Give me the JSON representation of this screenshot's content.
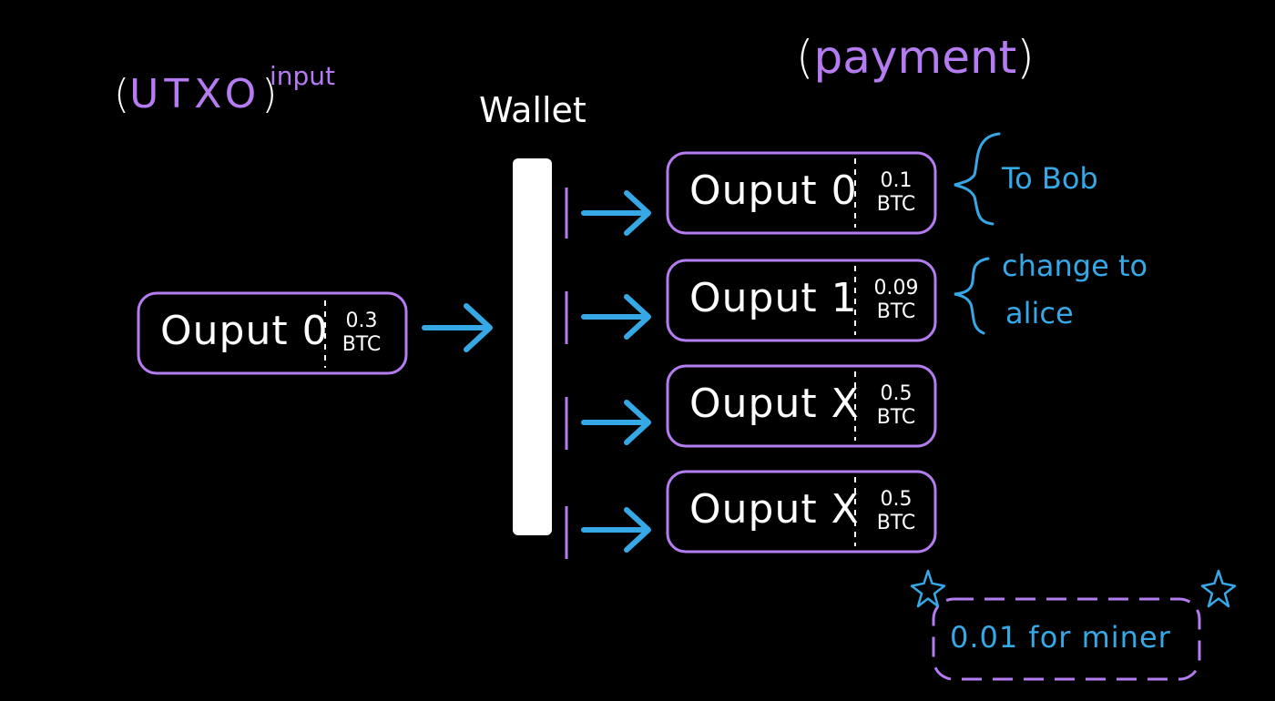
{
  "header": {
    "utxo_open": "(",
    "utxo_word": "UTXO",
    "utxo_close": ")",
    "input_word": "input",
    "wallet_label": "Wallet",
    "payment_open": "(",
    "payment_word": "payment",
    "payment_close": ")"
  },
  "input_box": {
    "name": "Ouput 0",
    "amount": "0.3",
    "unit": "BTC"
  },
  "outputs": [
    {
      "name": "Ouput 0",
      "amount": "0.1",
      "unit": "BTC"
    },
    {
      "name": "Ouput 1",
      "amount": "0.09",
      "unit": "BTC"
    },
    {
      "name": "Ouput X",
      "amount": "0.5",
      "unit": "BTC"
    },
    {
      "name": "Ouput X",
      "amount": "0.5",
      "unit": "BTC"
    }
  ],
  "annotations": {
    "to_bob": "To Bob",
    "change_line1": "change to",
    "change_line2": "alice"
  },
  "miner_fee": "0.01 for miner",
  "colors": {
    "purple": "#b57bf0",
    "blue": "#37a8e6",
    "white": "#ffffff",
    "background": "#000000"
  }
}
